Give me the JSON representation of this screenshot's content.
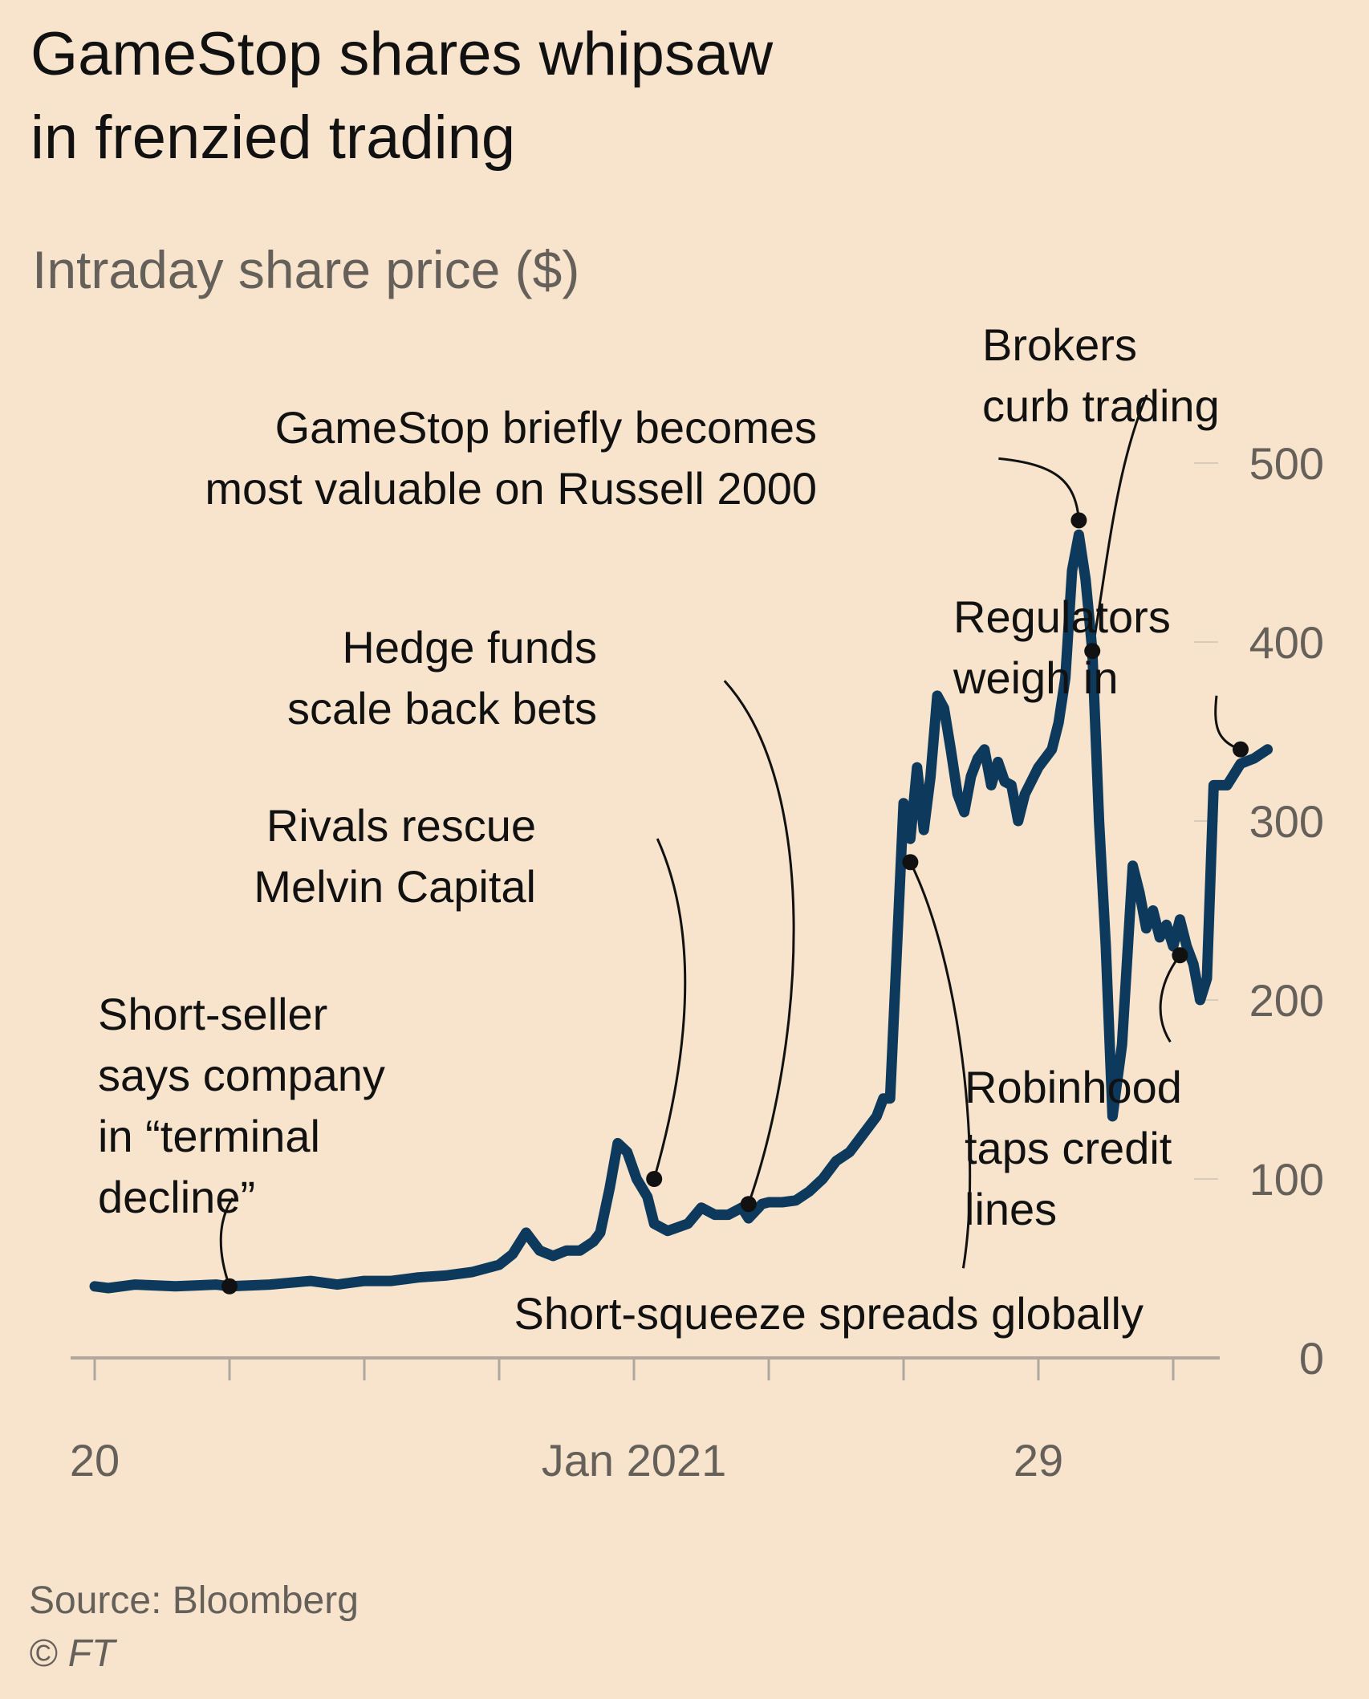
{
  "header": {
    "title_line1": "GameStop shares whipsaw",
    "title_line2": "in frenzied trading",
    "subtitle": "Intraday share price ($)"
  },
  "footer": {
    "source": "Source: Bloomberg",
    "copyright": "© FT"
  },
  "colors": {
    "background": "#f8e4cc",
    "line": "#0d3a5c",
    "axis": "#b0a89e",
    "annotation": "#111111"
  },
  "chart_data": {
    "type": "line",
    "title": "GameStop shares whipsaw in frenzied trading",
    "subtitle": "Intraday share price ($)",
    "xlabel": "",
    "ylabel": "",
    "x_ticks": [
      "20",
      "",
      "",
      "",
      "Jan 2021",
      "",
      "",
      "29",
      ""
    ],
    "y_ticks": [
      0,
      100,
      200,
      300,
      400,
      500
    ],
    "y_tick_labels": [
      "0",
      "100",
      "200",
      "300",
      "400",
      "500"
    ],
    "ylim": [
      0,
      500
    ],
    "y_axis_position": "right",
    "grid": false,
    "series": [
      {
        "name": "",
        "points": [
          [
            0,
            40
          ],
          [
            0.1,
            39
          ],
          [
            0.3,
            41
          ],
          [
            0.6,
            40
          ],
          [
            0.9,
            41
          ],
          [
            1.0,
            40
          ],
          [
            1.3,
            41
          ],
          [
            1.6,
            43
          ],
          [
            1.8,
            41
          ],
          [
            2.0,
            43
          ],
          [
            2.2,
            43
          ],
          [
            2.4,
            45
          ],
          [
            2.6,
            46
          ],
          [
            2.8,
            48
          ],
          [
            3.0,
            52
          ],
          [
            3.1,
            58
          ],
          [
            3.2,
            70
          ],
          [
            3.3,
            60
          ],
          [
            3.4,
            57
          ],
          [
            3.5,
            60
          ],
          [
            3.6,
            60
          ],
          [
            3.7,
            65
          ],
          [
            3.75,
            70
          ],
          [
            3.82,
            95
          ],
          [
            3.88,
            120
          ],
          [
            3.95,
            115
          ],
          [
            4.02,
            100
          ],
          [
            4.1,
            90
          ],
          [
            4.15,
            75
          ],
          [
            4.25,
            71
          ],
          [
            4.4,
            75
          ],
          [
            4.5,
            84
          ],
          [
            4.6,
            80
          ],
          [
            4.7,
            80
          ],
          [
            4.8,
            84
          ],
          [
            4.85,
            78
          ],
          [
            4.95,
            86
          ],
          [
            5.0,
            87
          ],
          [
            5.1,
            87
          ],
          [
            5.2,
            88
          ],
          [
            5.3,
            93
          ],
          [
            5.4,
            100
          ],
          [
            5.5,
            110
          ],
          [
            5.6,
            115
          ],
          [
            5.7,
            125
          ],
          [
            5.8,
            135
          ],
          [
            5.85,
            145
          ],
          [
            5.9,
            145
          ],
          [
            6.0,
            310
          ],
          [
            6.05,
            290
          ],
          [
            6.1,
            330
          ],
          [
            6.15,
            295
          ],
          [
            6.2,
            325
          ],
          [
            6.25,
            370
          ],
          [
            6.3,
            363
          ],
          [
            6.35,
            340
          ],
          [
            6.4,
            315
          ],
          [
            6.45,
            305
          ],
          [
            6.5,
            325
          ],
          [
            6.55,
            335
          ],
          [
            6.6,
            340
          ],
          [
            6.65,
            320
          ],
          [
            6.7,
            333
          ],
          [
            6.75,
            322
          ],
          [
            6.8,
            320
          ],
          [
            6.85,
            300
          ],
          [
            6.9,
            315
          ],
          [
            7.0,
            330
          ],
          [
            7.1,
            340
          ],
          [
            7.15,
            355
          ],
          [
            7.2,
            380
          ],
          [
            7.25,
            440
          ],
          [
            7.3,
            460
          ],
          [
            7.35,
            435
          ],
          [
            7.4,
            395
          ],
          [
            7.45,
            300
          ],
          [
            7.5,
            230
          ],
          [
            7.55,
            135
          ],
          [
            7.62,
            175
          ],
          [
            7.7,
            275
          ],
          [
            7.75,
            260
          ],
          [
            7.8,
            240
          ],
          [
            7.85,
            250
          ],
          [
            7.9,
            235
          ],
          [
            7.95,
            242
          ],
          [
            8.0,
            230
          ],
          [
            8.05,
            245
          ],
          [
            8.1,
            230
          ],
          [
            8.15,
            220
          ],
          [
            8.2,
            200
          ],
          [
            8.25,
            212
          ],
          [
            8.3,
            320
          ],
          [
            8.4,
            320
          ],
          [
            8.5,
            332
          ],
          [
            8.6,
            335
          ],
          [
            8.7,
            340
          ]
        ]
      }
    ],
    "annotations": [
      {
        "lines": [
          "Short-seller",
          "says company",
          "in “terminal",
          "decline”"
        ],
        "x": 1.0,
        "y": 40
      },
      {
        "lines": [
          "Rivals rescue",
          "Melvin Capital"
        ],
        "x": 4.15,
        "y": 100
      },
      {
        "lines": [
          "Hedge funds",
          "scale back bets"
        ],
        "x": 4.85,
        "y": 86
      },
      {
        "lines": [
          "Short-squeeze spreads globally"
        ],
        "x": 6.05,
        "y": 277
      },
      {
        "lines": [
          "GameStop briefly becomes",
          "most valuable on Russell 2000"
        ],
        "x": 7.3,
        "y": 468
      },
      {
        "lines": [
          "Brokers",
          "curb trading"
        ],
        "x": 7.4,
        "y": 395
      },
      {
        "lines": [
          "Regulators",
          "weigh in"
        ],
        "x": 8.5,
        "y": 340
      },
      {
        "lines": [
          "Robinhood",
          "taps credit",
          "lines"
        ],
        "x": 8.05,
        "y": 225
      }
    ]
  }
}
